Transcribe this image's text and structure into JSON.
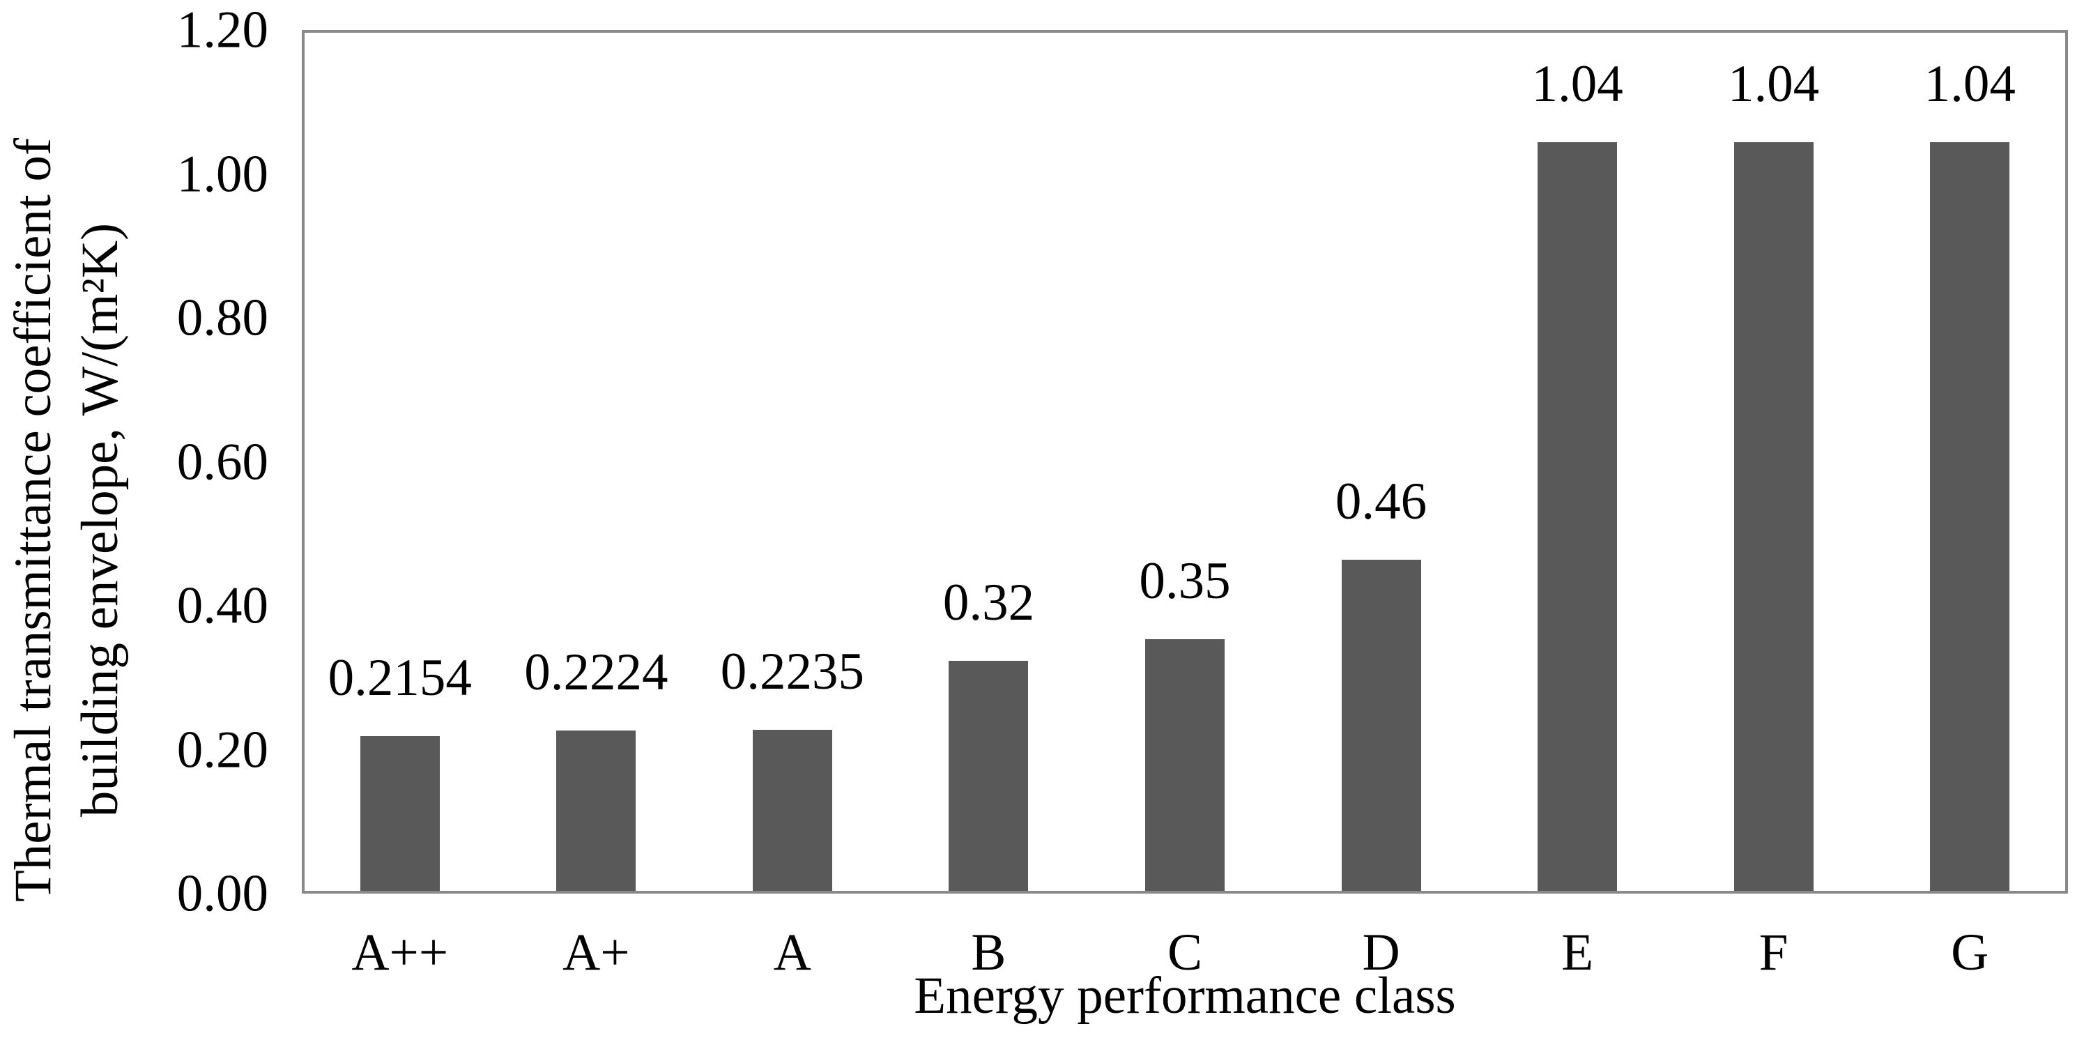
{
  "chart_data": {
    "type": "bar",
    "categories": [
      "A++",
      "A+",
      "A",
      "B",
      "C",
      "D",
      "E",
      "F",
      "G"
    ],
    "values": [
      0.2154,
      0.2224,
      0.2235,
      0.32,
      0.35,
      0.46,
      1.04,
      1.04,
      1.04
    ],
    "value_labels": [
      "0.2154",
      "0.2224",
      "0.2235",
      "0.32",
      "0.35",
      "0.46",
      "1.04",
      "1.04",
      "1.04"
    ],
    "title": "",
    "xlabel": "Energy performance class",
    "ylabel_line1": "Thermal transmittance coefficient of",
    "ylabel_line2": "building envelope, W/(m²K)",
    "ylim": [
      0,
      1.2
    ],
    "ytick_values": [
      0.0,
      0.2,
      0.4,
      0.6,
      0.8,
      1.0,
      1.2
    ],
    "ytick_labels": [
      "0.00",
      "0.20",
      "0.40",
      "0.60",
      "0.80",
      "1.00",
      "1.20"
    ],
    "grid": false,
    "legend": false,
    "bar_color": "#595959",
    "axis_border_color": "#898989",
    "text_color": "#000000"
  }
}
